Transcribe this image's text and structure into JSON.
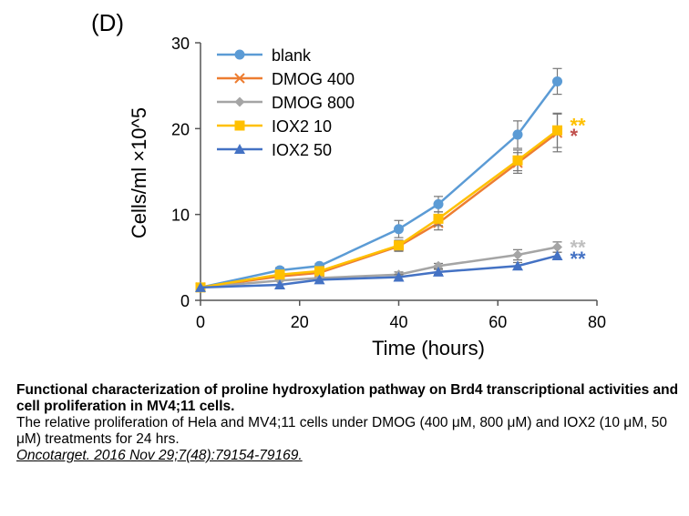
{
  "panel_label": "(D)",
  "chart_data": {
    "type": "line",
    "title": "",
    "xlabel": "Time (hours)",
    "ylabel": "Cells/ml ×10^5",
    "xlim": [
      0,
      80
    ],
    "ylim": [
      0,
      30
    ],
    "xticks": [
      0,
      20,
      40,
      60,
      80
    ],
    "yticks": [
      0,
      10,
      20,
      30
    ],
    "x": [
      0,
      16,
      24,
      40,
      48,
      64,
      72
    ],
    "grid": false,
    "legend_position": "top-left",
    "series": [
      {
        "name": "blank",
        "color": "#5b9bd5",
        "marker": "circle",
        "values": [
          1.5,
          3.5,
          4.0,
          8.3,
          11.2,
          19.3,
          25.5
        ],
        "errors": [
          0.2,
          0.3,
          0.3,
          1.0,
          0.9,
          1.6,
          1.5
        ]
      },
      {
        "name": "DMOG 400",
        "color": "#ed7d31",
        "marker": "x",
        "values": [
          1.5,
          2.8,
          3.2,
          6.3,
          9.0,
          16.0,
          19.5
        ],
        "errors": [
          0.2,
          0.3,
          0.3,
          0.6,
          0.8,
          1.2,
          2.2
        ]
      },
      {
        "name": "DMOG 800",
        "color": "#a5a5a5",
        "marker": "diamond",
        "values": [
          1.5,
          2.3,
          2.6,
          3.0,
          4.0,
          5.3,
          6.2
        ],
        "errors": [
          0.2,
          0.2,
          0.2,
          0.3,
          0.3,
          0.6,
          0.6
        ]
      },
      {
        "name": "IOX2 10",
        "color": "#ffc000",
        "marker": "square",
        "values": [
          1.5,
          3.0,
          3.4,
          6.4,
          9.5,
          16.3,
          19.8
        ],
        "errors": [
          0.2,
          0.3,
          0.3,
          0.6,
          0.8,
          1.2,
          2.0
        ]
      },
      {
        "name": "IOX2 50",
        "color": "#4472c4",
        "marker": "triangle",
        "values": [
          1.5,
          1.8,
          2.4,
          2.7,
          3.3,
          4.0,
          5.2
        ],
        "errors": [
          0.1,
          0.2,
          0.2,
          0.3,
          0.3,
          0.4,
          0.4
        ]
      }
    ],
    "annotations": [
      {
        "text": "**",
        "color": "#ffc000",
        "y": 20.5
      },
      {
        "text": "*",
        "color": "#c0504d",
        "y": 19.3
      },
      {
        "text": "**",
        "color": "#bfbfbf",
        "y": 6.3
      },
      {
        "text": "**",
        "color": "#4472c4",
        "y": 5.0
      }
    ]
  },
  "caption": {
    "title": "Functional characterization of proline hydroxylation pathway on Brd4 transcriptional activities and cell proliferation in MV4;11 cells.",
    "body": "The relative proliferation of Hela and MV4;11 cells under DMOG (400 μM, 800 μM) and IOX2 (10 μM, 50 μM) treatments for 24 hrs.",
    "citation": "Oncotarget. 2016 Nov 29;7(48):79154-79169."
  }
}
